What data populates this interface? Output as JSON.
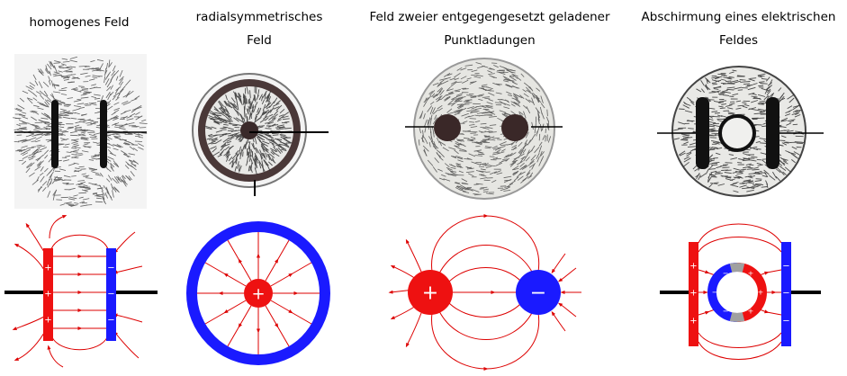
{
  "titles": {
    "homogeneous": "homogenes Feld",
    "radial_line1": "radialsymmetrisches",
    "radial_line2": "Feld",
    "dipole_line1": "Feld zweier entgegengesetzt geladener",
    "dipole_line2": "Punktladungen",
    "shield_line1": "Abschirmung eines elektrischen",
    "shield_line2": "Feldes"
  },
  "signs": {
    "plus": "+",
    "minus": "−"
  },
  "colors": {
    "positive": "#ee1111",
    "negative": "#1a1aff",
    "field_line": "#dd0000",
    "neutral": "#a0a0a0",
    "wire": "#000000",
    "photo_bg": "#f2f2f0"
  }
}
